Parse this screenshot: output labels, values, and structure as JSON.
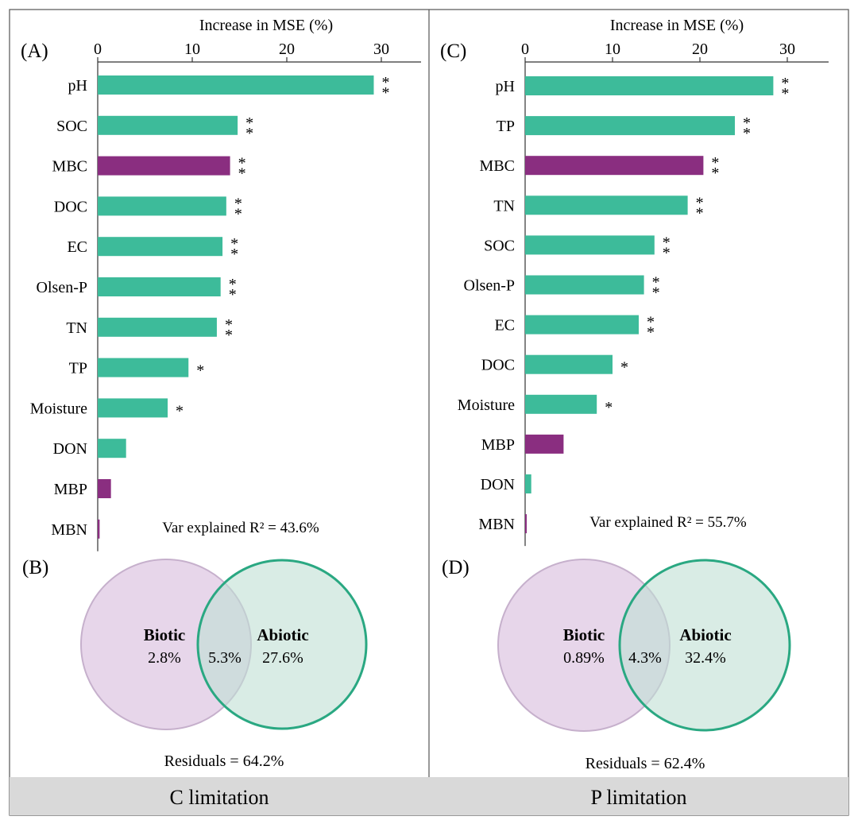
{
  "figure": {
    "colors": {
      "abiotic": "#3dbb9a",
      "biotic": "#8a2e80",
      "footer_bg": "#d9d9d9",
      "frame": "#555555",
      "text": "#1a1a1a"
    }
  },
  "chart_data": [
    {
      "type": "bar",
      "orientation": "horizontal",
      "panel_label": "(A)",
      "xlabel": "Increase in MSE (%)",
      "xlim": [
        0,
        34
      ],
      "xticks": [
        0,
        10,
        20,
        30
      ],
      "categories": [
        "pH",
        "SOC",
        "MBC",
        "DOC",
        "EC",
        "Olsen-P",
        "TN",
        "TP",
        "Moisture",
        "DON",
        "MBP",
        "MBN"
      ],
      "values": [
        29.2,
        14.8,
        14.0,
        13.6,
        13.2,
        13.0,
        12.6,
        9.6,
        7.4,
        3.0,
        1.4,
        0.2
      ],
      "groups": [
        "abiotic",
        "abiotic",
        "biotic",
        "abiotic",
        "abiotic",
        "abiotic",
        "abiotic",
        "abiotic",
        "abiotic",
        "abiotic",
        "biotic",
        "biotic"
      ],
      "significance": [
        "**",
        "**",
        "**",
        "**",
        "**",
        "**",
        "**",
        "*",
        "*",
        "",
        "",
        ""
      ],
      "annotation": "Var explained R² = 43.6%"
    },
    {
      "type": "bar",
      "orientation": "horizontal",
      "panel_label": "(C)",
      "xlabel": "Increase in MSE (%)",
      "xlim": [
        0,
        34
      ],
      "xticks": [
        0,
        10,
        20,
        30
      ],
      "categories": [
        "pH",
        "TP",
        "MBC",
        "TN",
        "SOC",
        "Olsen-P",
        "EC",
        "DOC",
        "Moisture",
        "MBP",
        "DON",
        "MBN"
      ],
      "values": [
        28.4,
        24.0,
        20.4,
        18.6,
        14.8,
        13.6,
        13.0,
        10.0,
        8.2,
        4.4,
        0.7,
        0.1
      ],
      "groups": [
        "abiotic",
        "abiotic",
        "biotic",
        "abiotic",
        "abiotic",
        "abiotic",
        "abiotic",
        "abiotic",
        "abiotic",
        "biotic",
        "abiotic",
        "biotic"
      ],
      "significance": [
        "**",
        "**",
        "**",
        "**",
        "**",
        "**",
        "**",
        "*",
        "*",
        "",
        "",
        ""
      ],
      "annotation": "Var explained R² = 55.7%"
    }
  ],
  "venns": [
    {
      "panel_label": "(B)",
      "biotic_label": "Biotic",
      "biotic_value": "2.8%",
      "shared_value": "5.3%",
      "abiotic_label": "Abiotic",
      "abiotic_value": "27.6%",
      "residuals": "Residuals = 64.2%"
    },
    {
      "panel_label": "(D)",
      "biotic_label": "Biotic",
      "biotic_value": "0.89%",
      "shared_value": "4.3%",
      "abiotic_label": "Abiotic",
      "abiotic_value": "32.4%",
      "residuals": "Residuals = 62.4%"
    }
  ],
  "footers": [
    "C limitation",
    "P limitation"
  ]
}
